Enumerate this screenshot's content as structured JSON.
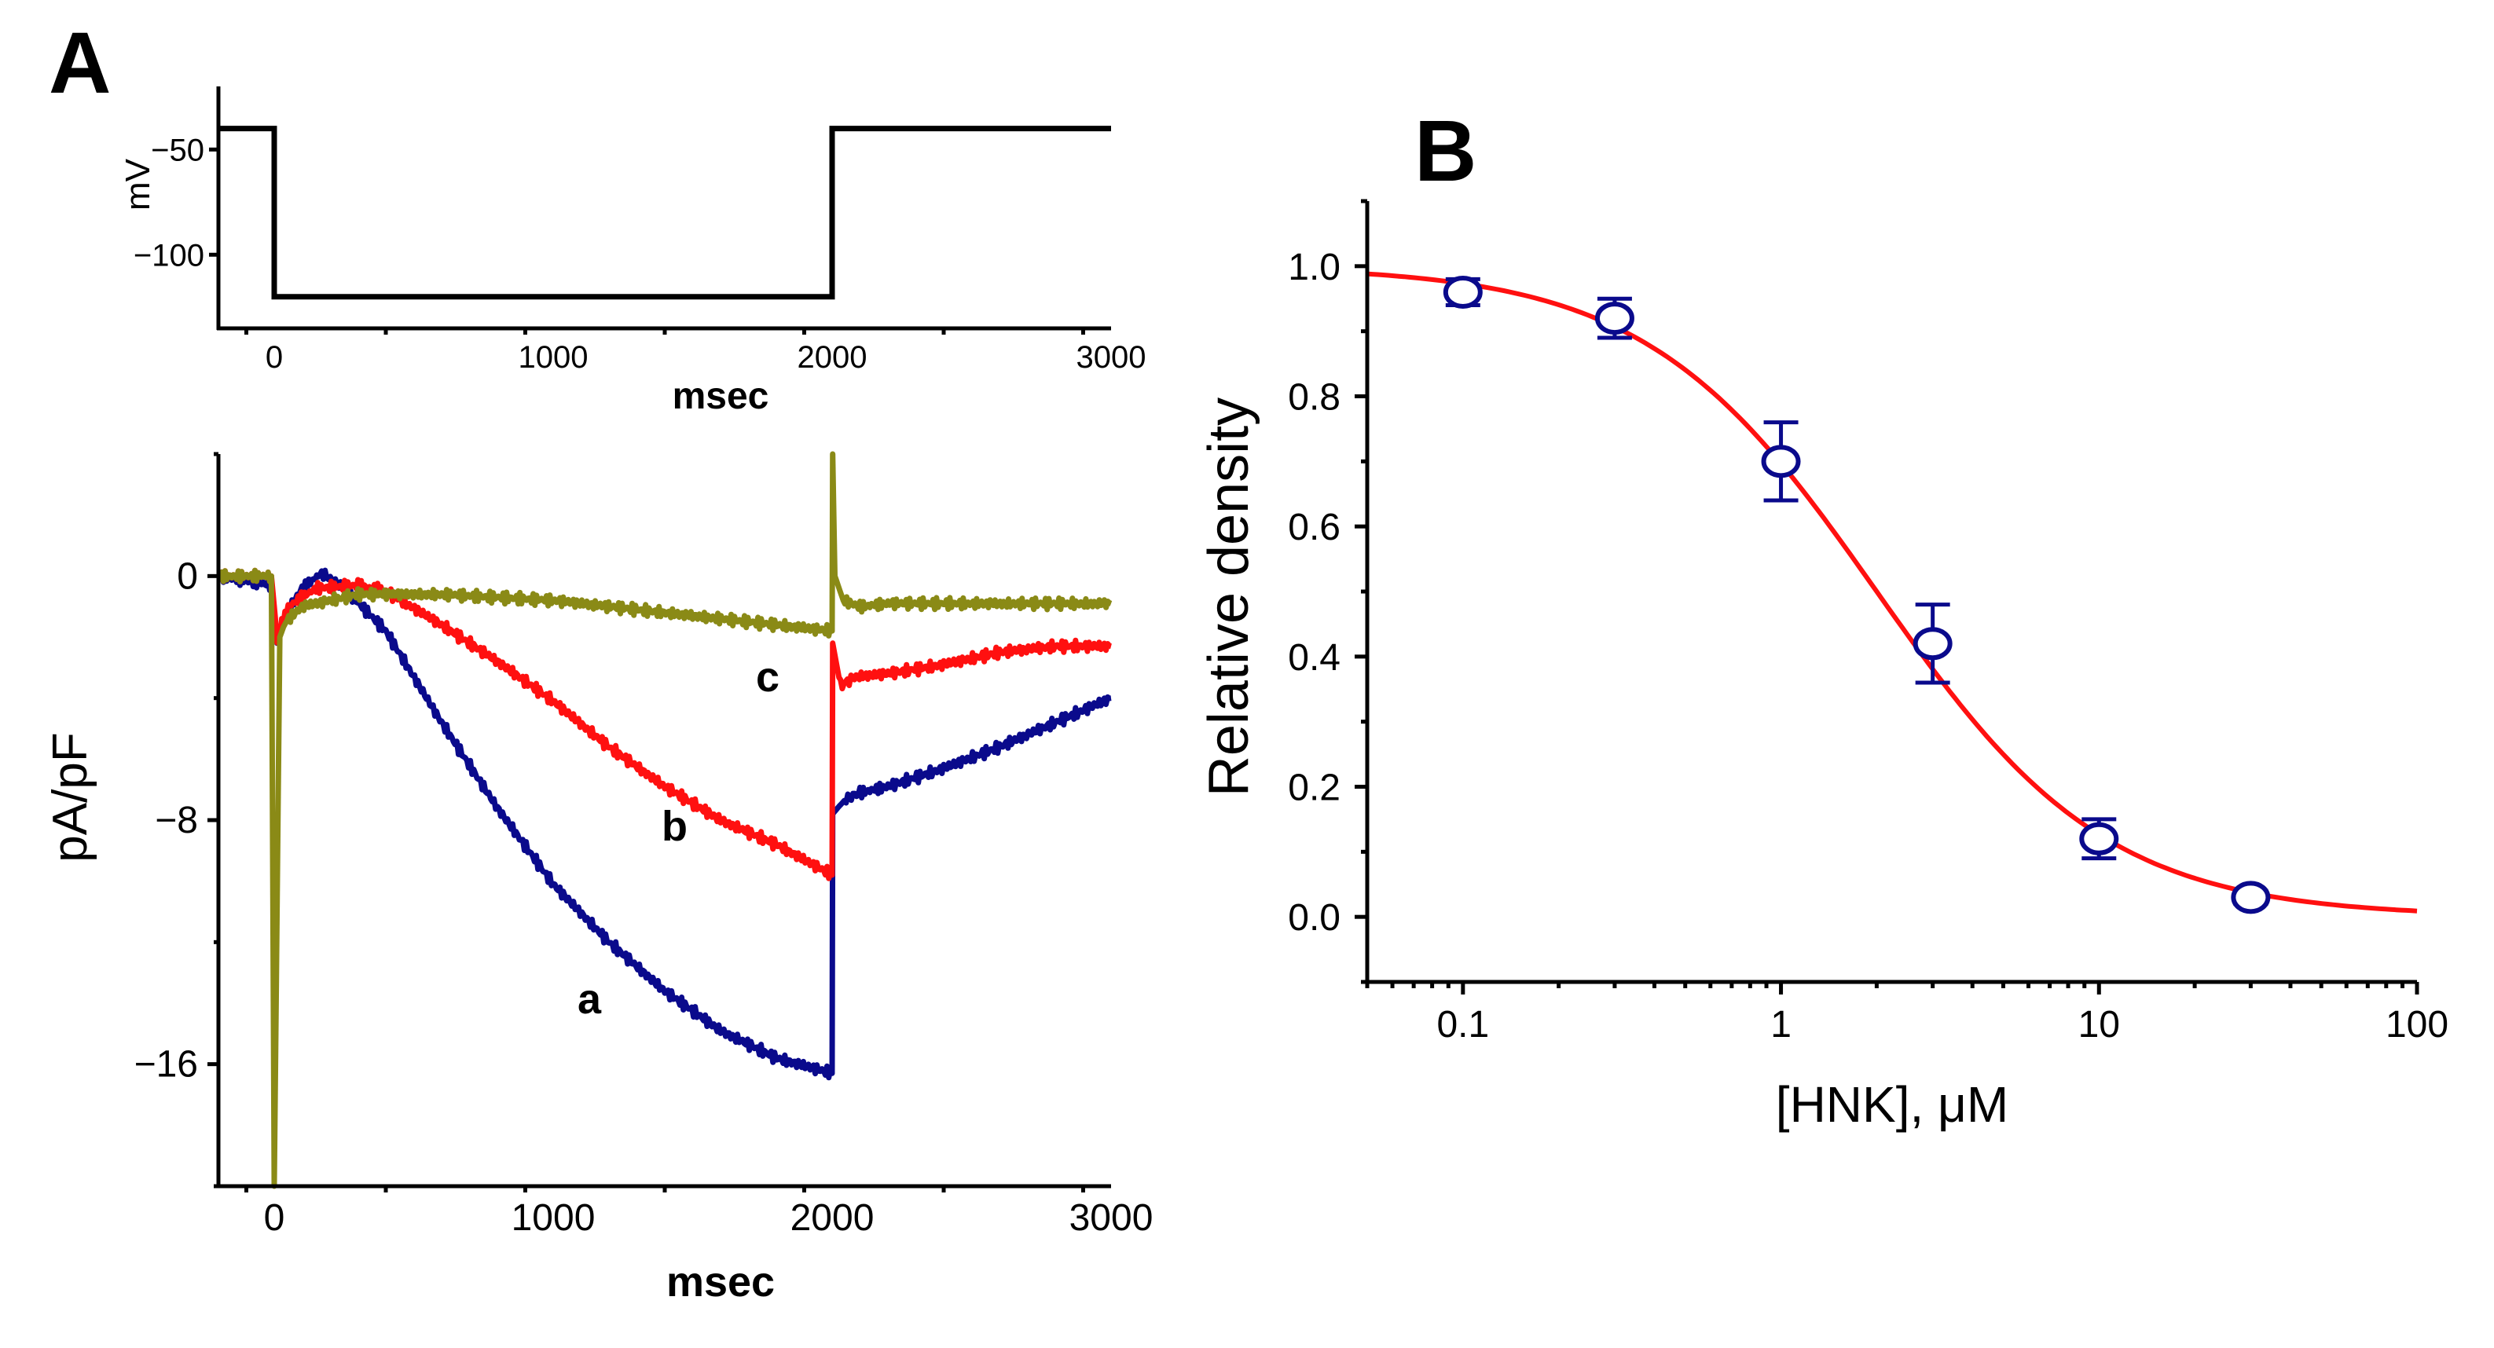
{
  "figure": {
    "panel_a_label": "A",
    "panel_b_label": "B"
  },
  "chart_data": [
    {
      "id": "A-top",
      "type": "line",
      "description_role": "voltage protocol",
      "xlabel": "msec",
      "ylabel": "mV",
      "xlim": [
        -200,
        3000
      ],
      "ylim": [
        -135,
        -20
      ],
      "xticks": [
        0,
        1000,
        2000,
        3000
      ],
      "xtick_labels": [
        "0",
        "1000",
        "2000",
        "3000"
      ],
      "yticks": [
        -50,
        -100
      ],
      "ytick_labels": [
        "−50",
        "−100"
      ],
      "series": [
        {
          "name": "protocol",
          "color": "#000000",
          "x": [
            -200,
            0,
            0,
            2000,
            2000,
            3000
          ],
          "y": [
            -40,
            -40,
            -120,
            -120,
            -40,
            -40
          ]
        }
      ]
    },
    {
      "id": "A-bottom",
      "type": "line",
      "description_role": "current traces",
      "xlabel": "msec",
      "ylabel": "pA/pF",
      "xlim": [
        -200,
        3000
      ],
      "ylim": [
        -20,
        4
      ],
      "xticks": [
        0,
        1000,
        2000,
        3000
      ],
      "xtick_labels": [
        "0",
        "1000",
        "2000",
        "3000"
      ],
      "yticks": [
        0,
        -8,
        -16
      ],
      "ytick_labels": [
        "0",
        "−8",
        "−16"
      ],
      "annotations": [
        "a",
        "b",
        "c"
      ],
      "series": [
        {
          "name": "a",
          "color": "#0a0a8c",
          "x": [
            -200,
            -10,
            10,
            40,
            100,
            170,
            250,
            400,
            600,
            800,
            1000,
            1200,
            1400,
            1600,
            1800,
            2000,
            2002,
            2020,
            2050,
            2100,
            2200,
            2400,
            2600,
            2800,
            3000
          ],
          "y": [
            0,
            -0.3,
            -2.2,
            -1.3,
            -0.4,
            0.1,
            -0.4,
            -1.8,
            -4.8,
            -7.6,
            -10.1,
            -12.0,
            -13.6,
            -14.9,
            -15.8,
            -16.3,
            -7.8,
            -7.6,
            -7.3,
            -7.1,
            -6.9,
            -6.3,
            -5.6,
            -4.8,
            -4.0
          ]
        },
        {
          "name": "b",
          "color": "#ff1010",
          "x": [
            -200,
            -10,
            10,
            50,
            150,
            300,
            400,
            600,
            800,
            1000,
            1200,
            1400,
            1600,
            1800,
            2000,
            2002,
            2030,
            2080,
            2200,
            2400,
            2600,
            2800,
            3000
          ],
          "y": [
            0,
            0,
            -2.0,
            -1.0,
            -0.4,
            -0.3,
            -0.5,
            -1.6,
            -2.8,
            -4.1,
            -5.6,
            -6.9,
            -8.0,
            -8.8,
            -9.8,
            -2.2,
            -3.6,
            -3.3,
            -3.2,
            -2.9,
            -2.5,
            -2.3,
            -2.3
          ]
        },
        {
          "name": "c",
          "color": "#8a8a16",
          "x": [
            -200,
            -10,
            0,
            20,
            40,
            100,
            300,
            600,
            1000,
            1500,
            1800,
            2000,
            2002,
            2010,
            2040,
            2100,
            2200,
            2500,
            3000
          ],
          "y": [
            0,
            0,
            -20,
            -2.0,
            -1.5,
            -1.0,
            -0.6,
            -0.6,
            -0.8,
            -1.3,
            -1.6,
            -1.8,
            4,
            0,
            -0.8,
            -1.0,
            -0.9,
            -0.9,
            -0.9
          ]
        }
      ]
    },
    {
      "id": "B",
      "type": "scatter",
      "xscale": "log",
      "xlabel": "[HNK], μM",
      "ylabel": "Relative density",
      "xlim": [
        0.05,
        100
      ],
      "ylim": [
        -0.1,
        1.1
      ],
      "xticks": [
        0.1,
        1,
        10,
        100
      ],
      "xtick_labels": [
        "0.1",
        "1",
        "10",
        "100"
      ],
      "yticks": [
        0,
        0.2,
        0.4,
        0.6,
        0.8,
        1.0
      ],
      "ytick_labels": [
        "0.0",
        "0.2",
        "0.4",
        "0.6",
        "0.8",
        "1.0"
      ],
      "points": {
        "color": "#0a0a8c",
        "x": [
          0.1,
          0.3,
          1,
          3,
          10,
          30
        ],
        "y": [
          0.96,
          0.92,
          0.7,
          0.42,
          0.12,
          0.03
        ],
        "err": [
          0.02,
          0.03,
          0.06,
          0.06,
          0.03,
          0.01
        ]
      },
      "fit": {
        "color": "#ff1010",
        "model": "hill",
        "ic50": 2.0,
        "n": 1.2
      }
    }
  ]
}
